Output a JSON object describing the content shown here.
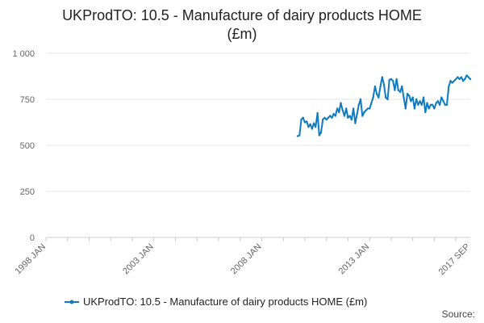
{
  "chart_data": {
    "type": "line",
    "title_line1": "UKProdTO: 10.5 - Manufacture of dairy products HOME",
    "title_line2": "(£m)",
    "xlabel": "",
    "ylabel": "",
    "ylim": [
      0,
      1000
    ],
    "y_ticks": [
      0,
      250,
      500,
      750,
      1000
    ],
    "y_tick_labels": [
      "0",
      "250",
      "500",
      "750",
      "1 000"
    ],
    "x_range": [
      "1998-01",
      "2017-09"
    ],
    "x_ticks": [
      {
        "date": "1998-01",
        "label": "1998 JAN"
      },
      {
        "date": "2003-01",
        "label": "2003 JAN"
      },
      {
        "date": "2008-01",
        "label": "2008 JAN"
      },
      {
        "date": "2013-01",
        "label": "2013 JAN"
      },
      {
        "date": "2017-09",
        "label": "2017 SEP"
      }
    ],
    "grid": "horizontal",
    "legend_position": "bottom",
    "series": [
      {
        "name": "UKProdTO: 10.5 - Manufacture of dairy products HOME (£m)",
        "color": "#0f7bbf",
        "x": [
          "2009-09",
          "2009-10",
          "2009-11",
          "2009-12",
          "2010-01",
          "2010-02",
          "2010-03",
          "2010-04",
          "2010-05",
          "2010-06",
          "2010-07",
          "2010-08",
          "2010-09",
          "2010-10",
          "2010-11",
          "2010-12",
          "2011-01",
          "2011-02",
          "2011-03",
          "2011-04",
          "2011-05",
          "2011-06",
          "2011-07",
          "2011-08",
          "2011-09",
          "2011-10",
          "2011-11",
          "2011-12",
          "2012-01",
          "2012-02",
          "2012-03",
          "2012-04",
          "2012-05",
          "2012-06",
          "2012-07",
          "2012-08",
          "2012-09",
          "2012-10",
          "2012-11",
          "2012-12",
          "2013-01",
          "2013-02",
          "2013-03",
          "2013-04",
          "2013-05",
          "2013-06",
          "2013-07",
          "2013-08",
          "2013-09",
          "2013-10",
          "2013-11",
          "2013-12",
          "2014-01",
          "2014-02",
          "2014-03",
          "2014-04",
          "2014-05",
          "2014-06",
          "2014-07",
          "2014-08",
          "2014-09",
          "2014-10",
          "2014-11",
          "2014-12",
          "2015-01",
          "2015-02",
          "2015-03",
          "2015-04",
          "2015-05",
          "2015-06",
          "2015-07",
          "2015-08",
          "2015-09",
          "2015-10",
          "2015-11",
          "2015-12",
          "2016-01",
          "2016-02",
          "2016-03",
          "2016-04",
          "2016-05",
          "2016-06",
          "2016-07",
          "2016-08",
          "2016-09",
          "2016-10",
          "2016-11",
          "2016-12",
          "2017-01",
          "2017-02",
          "2017-03",
          "2017-04",
          "2017-05",
          "2017-06",
          "2017-07",
          "2017-08",
          "2017-09"
        ],
        "values": [
          550,
          555,
          640,
          650,
          625,
          630,
          600,
          615,
          590,
          620,
          600,
          675,
          555,
          570,
          640,
          650,
          640,
          650,
          660,
          650,
          670,
          660,
          700,
          680,
          730,
          690,
          660,
          700,
          650,
          660,
          640,
          700,
          620,
          670,
          720,
          750,
          660,
          680,
          690,
          700,
          700,
          730,
          760,
          820,
          780,
          760,
          820,
          870,
          830,
          760,
          750,
          855,
          860,
          850,
          800,
          860,
          800,
          790,
          820,
          760,
          700,
          780,
          770,
          740,
          760,
          700,
          750,
          720,
          740,
          720,
          760,
          680,
          730,
          700,
          720,
          720,
          700,
          730,
          740,
          720,
          760,
          740,
          720,
          720,
          820,
          850,
          840,
          850,
          860,
          870,
          860,
          870,
          850,
          860,
          880,
          870,
          860
        ]
      }
    ]
  },
  "source_label": "Source:"
}
